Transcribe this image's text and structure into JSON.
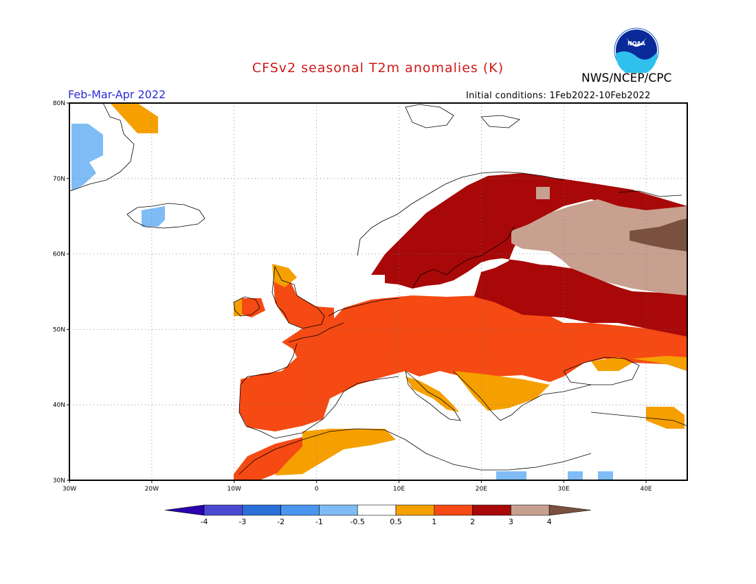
{
  "title": "CFSv2 seasonal T2m anomalies (K)",
  "agency": "NWS/NCEP/CPC",
  "logo_text": "NOAA",
  "season": "Feb-Mar-Apr 2022",
  "initial_conditions": "Initial conditions:  1Feb2022-10Feb2022",
  "axes": {
    "lon_labels": [
      "30W",
      "20W",
      "10W",
      "0",
      "10E",
      "20E",
      "30E",
      "40E"
    ],
    "lat_labels": [
      "80N",
      "70N",
      "60N",
      "50N",
      "40N",
      "30N"
    ],
    "lon_range": [
      -30,
      45
    ],
    "lat_range": [
      30,
      80
    ],
    "grid": "dotted"
  },
  "colorbar": {
    "labels": [
      "-4",
      "-3",
      "-2",
      "-1",
      "-0.5",
      "0.5",
      "1",
      "2",
      "3",
      "4"
    ],
    "colors": [
      "#2a00b0",
      "#4a4ad0",
      "#2b6fd8",
      "#4a95ee",
      "#7fbcf5",
      "#ffffff",
      "#f5a000",
      "#f54a14",
      "#a80808",
      "#c8a090",
      "#7a5040"
    ]
  },
  "regions": [
    {
      "level": "+1 to +2",
      "color": "#f54a14",
      "area": "Western, Central and Eastern Europe"
    },
    {
      "level": "+2 to +3",
      "color": "#a80808",
      "area": "Scandinavia, Baltic, Western Russia"
    },
    {
      "level": "+3 to +4",
      "color": "#c8a090",
      "area": "Northwest Russia"
    },
    {
      "level": "> +4",
      "color": "#7a5040",
      "area": "East of map"
    },
    {
      "level": "+0.5 to +1",
      "color": "#f5a000",
      "area": "Italy, Balkans, North Africa"
    },
    {
      "level": "-1 to -0.5",
      "color": "#7fbcf5",
      "area": "Greenland, Iceland, Eastern Mediterranean"
    }
  ]
}
